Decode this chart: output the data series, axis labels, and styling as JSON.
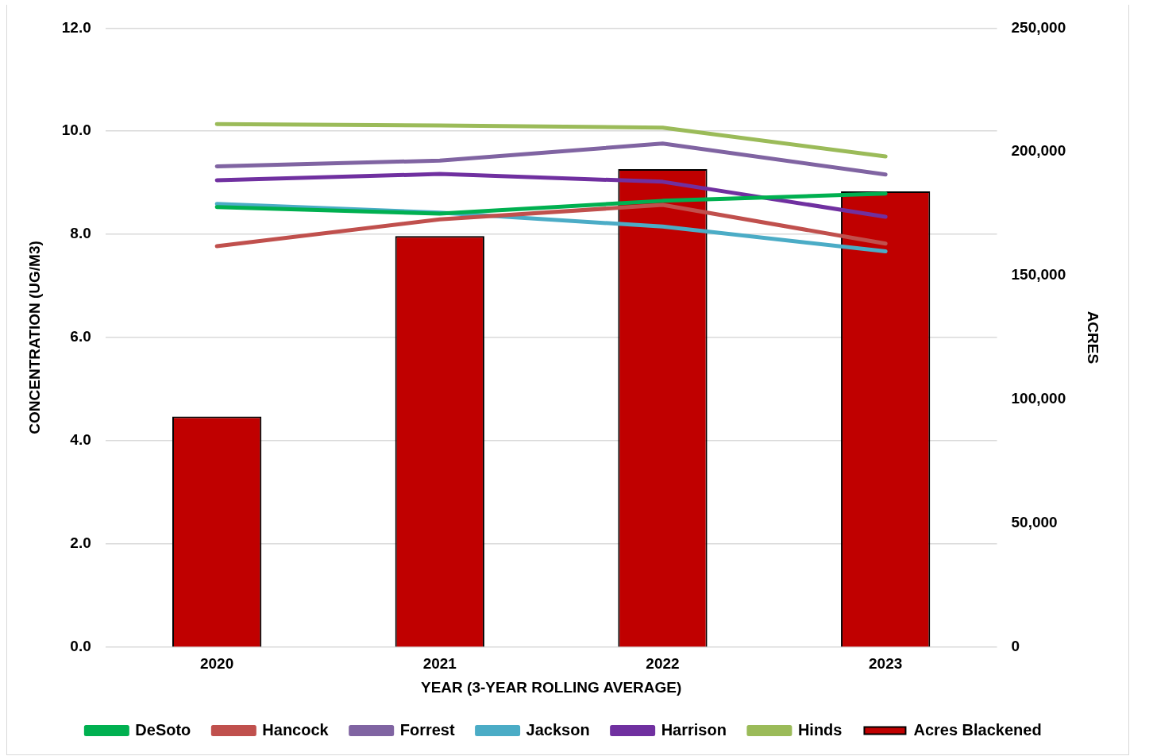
{
  "chart_data": {
    "type": "line",
    "categories": [
      "2020",
      "2021",
      "2022",
      "2023"
    ],
    "xlabel": "YEAR (3-YEAR ROLLING AVERAGE)",
    "ylabel": "CONCENTRATION (UG/M3)",
    "y2label": "ACRES",
    "ylim": [
      0,
      12
    ],
    "yticks": [
      {
        "value": 0,
        "label": "0.0"
      },
      {
        "value": 2,
        "label": "2.0"
      },
      {
        "value": 4,
        "label": "4.0"
      },
      {
        "value": 6,
        "label": "6.0"
      },
      {
        "value": 8,
        "label": "8.0"
      },
      {
        "value": 10,
        "label": "10.0"
      },
      {
        "value": 12,
        "label": "12.0"
      }
    ],
    "y2lim": [
      0,
      250000
    ],
    "y2ticks": [
      {
        "value": 0,
        "label": "0"
      },
      {
        "value": 50000,
        "label": "50,000"
      },
      {
        "value": 100000,
        "label": "100,000"
      },
      {
        "value": 150000,
        "label": "150,000"
      },
      {
        "value": 200000,
        "label": "200,000"
      },
      {
        "value": 250000,
        "label": "250,000"
      }
    ],
    "grid": "y",
    "legend": "bottom",
    "marker": "none",
    "series": [
      {
        "name": "Acres Blackened",
        "type": "bar",
        "axis": "y2",
        "color": "#c00000",
        "values": [
          93000,
          166000,
          193000,
          184000
        ]
      },
      {
        "name": "DeSoto",
        "color": "#00b050",
        "values": [
          8.53,
          8.4,
          8.65,
          8.79
        ]
      },
      {
        "name": "Hancock",
        "color": "#c0504d",
        "values": [
          7.77,
          8.29,
          8.57,
          7.82
        ]
      },
      {
        "name": "Forrest",
        "color": "#8064a2",
        "values": [
          9.32,
          9.43,
          9.76,
          9.16
        ]
      },
      {
        "name": "Jackson",
        "color": "#4bacc6",
        "values": [
          8.59,
          8.42,
          8.15,
          7.67
        ]
      },
      {
        "name": "Harrison",
        "color": "#7030a0",
        "values": [
          9.05,
          9.17,
          9.02,
          8.34
        ]
      },
      {
        "name": "Hinds",
        "color": "#9bbb59",
        "values": [
          10.14,
          10.11,
          10.07,
          9.51
        ]
      }
    ]
  }
}
